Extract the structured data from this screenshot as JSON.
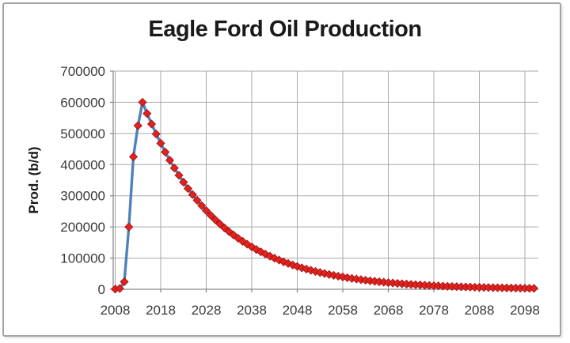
{
  "window": {
    "background": "#ffffff",
    "frame_border_color": "#a4a4a4"
  },
  "chart_data": {
    "type": "line",
    "title": "Eagle Ford Oil Production",
    "xlabel": "",
    "ylabel": "Prod. (b/d)",
    "x_ticks": [
      2008,
      2018,
      2028,
      2038,
      2048,
      2058,
      2068,
      2078,
      2088,
      2098
    ],
    "y_ticks": [
      0,
      100000,
      200000,
      300000,
      400000,
      500000,
      600000,
      700000
    ],
    "xlim": [
      2007.6,
      2101.6
    ],
    "ylim": [
      0,
      700000
    ],
    "grid": true,
    "legend": "none",
    "colors": {
      "line": "#4f81bd",
      "marker_fill": "#e2231d",
      "marker_edge": "#9b0f13",
      "grid": "#a9a9a9",
      "axis": "#8c8c8c",
      "tick_text": "#3a3a3a",
      "title_text": "#1a1a1a"
    },
    "series": [
      {
        "marker": "diamond",
        "x": [
          2008,
          2009,
          2010,
          2011,
          2012,
          2013,
          2014,
          2015,
          2016,
          2017,
          2018,
          2019,
          2020,
          2021,
          2022,
          2023,
          2024,
          2025,
          2026,
          2027,
          2028,
          2029,
          2030,
          2031,
          2032,
          2033,
          2034,
          2035,
          2036,
          2037,
          2038,
          2039,
          2040,
          2041,
          2042,
          2043,
          2044,
          2045,
          2046,
          2047,
          2048,
          2049,
          2050,
          2051,
          2052,
          2053,
          2054,
          2055,
          2056,
          2057,
          2058,
          2059,
          2060,
          2061,
          2062,
          2063,
          2064,
          2065,
          2066,
          2067,
          2068,
          2069,
          2070,
          2071,
          2072,
          2073,
          2074,
          2075,
          2076,
          2077,
          2078,
          2079,
          2080,
          2081,
          2082,
          2083,
          2084,
          2085,
          2086,
          2087,
          2088,
          2089,
          2090,
          2091,
          2092,
          2093,
          2094,
          2095,
          2096,
          2097,
          2098,
          2099,
          2100
        ],
        "y": [
          500,
          2500,
          24000,
          200000,
          425000,
          525000,
          600000,
          564000,
          530200,
          498300,
          468400,
          440300,
          413900,
          389100,
          365700,
          343800,
          323200,
          303800,
          285600,
          268400,
          252300,
          237200,
          222900,
          209600,
          197000,
          185200,
          174100,
          163600,
          153800,
          144600,
          135900,
          127700,
          120100,
          112900,
          106100,
          99700,
          93800,
          88100,
          82800,
          77900,
          73200,
          68800,
          64700,
          60800,
          57100,
          53700,
          50500,
          47500,
          44600,
          41900,
          39400,
          37100,
          34800,
          32700,
          30800,
          28900,
          27200,
          25600,
          24000,
          22600,
          21200,
          20000,
          18800,
          17600,
          16600,
          15600,
          14600,
          13800,
          12900,
          12200,
          11400,
          10800,
          10100,
          9500,
          8900,
          8400,
          7900,
          7400,
          7000,
          6600,
          6200,
          5800,
          5400,
          5100,
          4800,
          4500,
          4200,
          4000,
          3800,
          3500,
          3300,
          3100,
          2900
        ]
      }
    ]
  }
}
